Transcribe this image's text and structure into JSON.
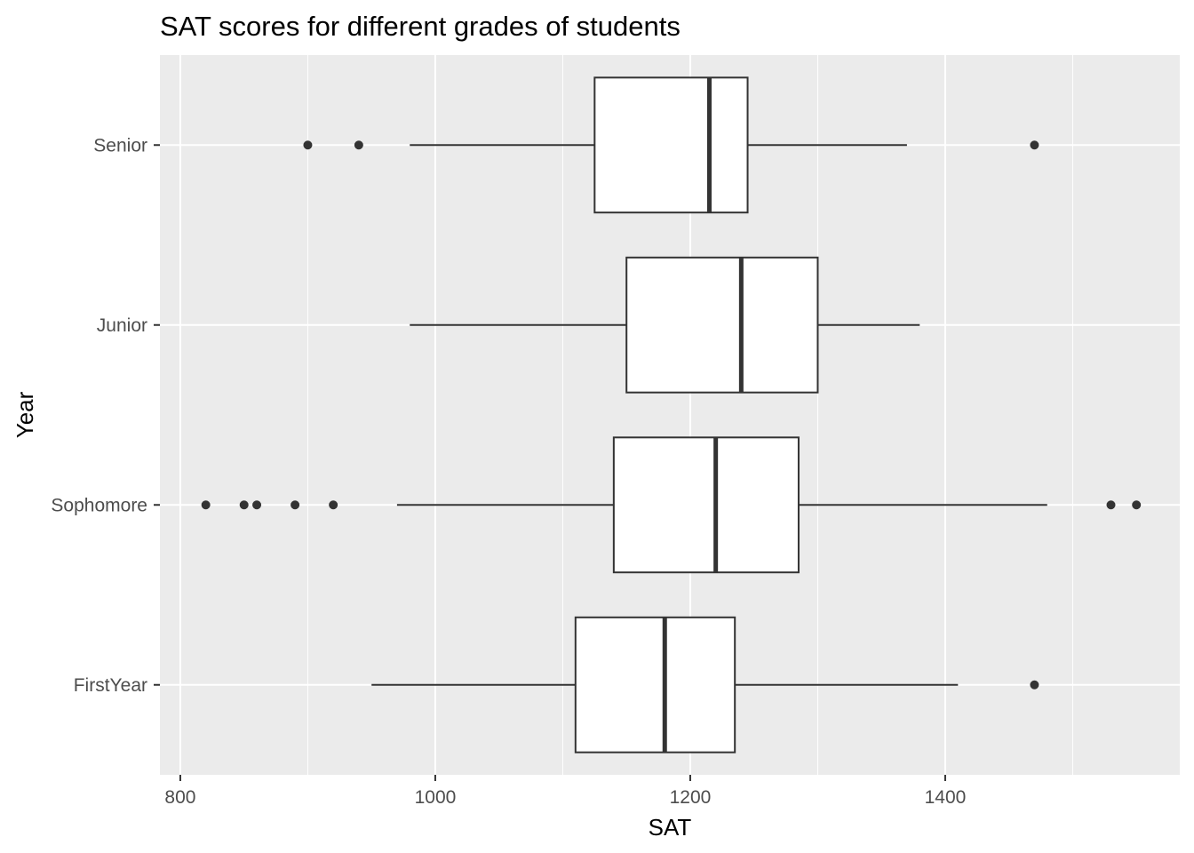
{
  "chart_data": {
    "type": "boxplot",
    "orientation": "horizontal",
    "title": "SAT scores for different grades of students",
    "xlabel": "SAT",
    "ylabel": "Year",
    "xlim": [
      784,
      1584
    ],
    "x_ticks": [
      800,
      1000,
      1200,
      1400
    ],
    "grid": true,
    "legend": "none",
    "colors": {
      "panel_background": "#ebebeb",
      "grid": "#ffffff",
      "box_fill": "#ffffff",
      "box_line": "#333333",
      "axis_text": "#4d4d4d"
    },
    "categories": [
      "FirstYear",
      "Sophomore",
      "Junior",
      "Senior"
    ],
    "boxes": [
      {
        "category": "FirstYear",
        "whisker_low": 950,
        "q1": 1110,
        "median": 1180,
        "q3": 1235,
        "whisker_high": 1410,
        "outliers": [
          1470
        ]
      },
      {
        "category": "Sophomore",
        "whisker_low": 970,
        "q1": 1140,
        "median": 1220,
        "q3": 1285,
        "whisker_high": 1480,
        "outliers": [
          820,
          850,
          860,
          890,
          920,
          1530,
          1550
        ]
      },
      {
        "category": "Junior",
        "whisker_low": 980,
        "q1": 1150,
        "median": 1240,
        "q3": 1300,
        "whisker_high": 1380,
        "outliers": []
      },
      {
        "category": "Senior",
        "whisker_low": 980,
        "q1": 1125,
        "median": 1215,
        "q3": 1245,
        "whisker_high": 1370,
        "outliers": [
          900,
          940,
          1470
        ]
      }
    ]
  }
}
